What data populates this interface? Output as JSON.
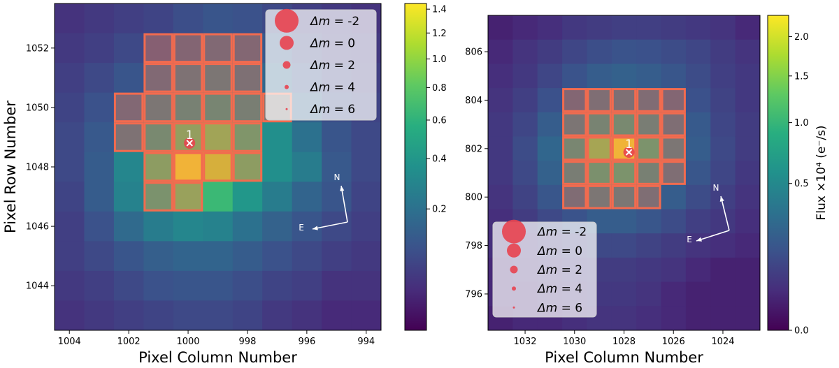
{
  "chart_data": [
    {
      "type": "heatmap",
      "xlabel": "Pixel Column Number",
      "ylabel": "Pixel Row Number",
      "x_range": [
        1004.5,
        993.5
      ],
      "y_range": [
        1042.5,
        1053.5
      ],
      "x_ticks": [
        1004,
        1002,
        1000,
        998,
        996,
        994
      ],
      "y_ticks": [
        1044,
        1046,
        1048,
        1050,
        1052
      ],
      "colorbar": {
        "label": "",
        "ticks": [
          {
            "value": 1.4,
            "label": "1.4"
          },
          {
            "value": 1.2,
            "label": "1.2"
          },
          {
            "value": 1.0,
            "label": "1.0"
          },
          {
            "value": 0.8,
            "label": "0.8"
          },
          {
            "value": 0.6,
            "label": "0.6"
          },
          {
            "value": 0.4,
            "label": "0.4"
          },
          {
            "value": 0.2,
            "label": "0.2"
          }
        ]
      },
      "grid_col_start": 1004,
      "grid_row_start": 1053,
      "pixel_flux": [
        [
          0.03,
          0.04,
          0.05,
          0.06,
          0.08,
          0.1,
          0.09,
          0.07,
          0.05,
          0.04,
          0.03
        ],
        [
          0.04,
          0.05,
          0.07,
          0.1,
          0.13,
          0.16,
          0.14,
          0.11,
          0.07,
          0.05,
          0.04
        ],
        [
          0.05,
          0.07,
          0.1,
          0.16,
          0.22,
          0.25,
          0.21,
          0.16,
          0.1,
          0.06,
          0.05
        ],
        [
          0.06,
          0.09,
          0.15,
          0.25,
          0.35,
          0.4,
          0.33,
          0.24,
          0.14,
          0.08,
          0.06
        ],
        [
          0.07,
          0.11,
          0.22,
          0.45,
          0.75,
          0.85,
          0.6,
          0.35,
          0.2,
          0.1,
          0.07
        ],
        [
          0.07,
          0.12,
          0.3,
          0.7,
          1.4,
          1.2,
          0.7,
          0.35,
          0.25,
          0.11,
          0.07
        ],
        [
          0.06,
          0.12,
          0.28,
          0.55,
          0.8,
          0.65,
          0.4,
          0.25,
          0.15,
          0.1,
          0.06
        ],
        [
          0.05,
          0.09,
          0.17,
          0.25,
          0.3,
          0.28,
          0.2,
          0.14,
          0.1,
          0.07,
          0.05
        ],
        [
          0.05,
          0.07,
          0.1,
          0.13,
          0.15,
          0.15,
          0.12,
          0.09,
          0.07,
          0.05,
          0.04
        ],
        [
          0.04,
          0.05,
          0.07,
          0.09,
          0.1,
          0.1,
          0.08,
          0.06,
          0.05,
          0.03,
          0.03
        ],
        [
          0.03,
          0.04,
          0.05,
          0.06,
          0.07,
          0.07,
          0.06,
          0.04,
          0.03,
          0.02,
          0.02
        ]
      ],
      "aperture_pixels": [
        [
          1001,
          1052
        ],
        [
          1000,
          1052
        ],
        [
          999,
          1052
        ],
        [
          998,
          1052
        ],
        [
          1001,
          1051
        ],
        [
          1000,
          1051
        ],
        [
          999,
          1051
        ],
        [
          998,
          1051
        ],
        [
          1002,
          1050
        ],
        [
          1001,
          1050
        ],
        [
          1000,
          1050
        ],
        [
          999,
          1050
        ],
        [
          998,
          1050
        ],
        [
          997,
          1050
        ],
        [
          1002,
          1049
        ],
        [
          1001,
          1049
        ],
        [
          1000,
          1049
        ],
        [
          999,
          1049
        ],
        [
          998,
          1049
        ],
        [
          1001,
          1048
        ],
        [
          1000,
          1048
        ],
        [
          999,
          1048
        ],
        [
          998,
          1048
        ],
        [
          1001,
          1047
        ],
        [
          1000,
          1047
        ]
      ],
      "stars": [
        {
          "label": "1",
          "column": 999.95,
          "row": 1048.8
        }
      ],
      "legend": {
        "position": "upper-right",
        "entries": [
          {
            "symbol": "Δm",
            "label": " = ",
            "value": "-2"
          },
          {
            "symbol": "Δm",
            "label": " = ",
            "value": "0"
          },
          {
            "symbol": "Δm",
            "label": " = ",
            "value": "2"
          },
          {
            "symbol": "Δm",
            "label": " = ",
            "value": "4"
          },
          {
            "symbol": "Δm",
            "label": " = ",
            "value": "6"
          }
        ]
      },
      "compass": {
        "north": "N",
        "east": "E"
      }
    },
    {
      "type": "heatmap",
      "xlabel": "Pixel Column Number",
      "ylabel": "",
      "x_range": [
        1033.5,
        1022.5
      ],
      "y_range": [
        794.5,
        807.5
      ],
      "x_ticks": [
        1032,
        1030,
        1028,
        1026,
        1024
      ],
      "y_ticks": [
        796,
        798,
        800,
        802,
        804,
        806
      ],
      "colorbar": {
        "label": "Flux ×10⁴ (e⁻/s)",
        "ticks": [
          {
            "value": 2.0,
            "label": "2.0"
          },
          {
            "value": 1.5,
            "label": "1.5"
          },
          {
            "value": 1.0,
            "label": "1.0"
          },
          {
            "value": 0.5,
            "label": "0.5"
          },
          {
            "value": 0.0,
            "label": "0.0"
          }
        ]
      },
      "grid_col_start": 1033,
      "grid_row_start": 807,
      "pixel_flux": [
        [
          0.02,
          0.03,
          0.04,
          0.06,
          0.07,
          0.08,
          0.08,
          0.07,
          0.06,
          0.05,
          0.03
        ],
        [
          0.03,
          0.05,
          0.07,
          0.1,
          0.13,
          0.15,
          0.14,
          0.12,
          0.1,
          0.07,
          0.05
        ],
        [
          0.04,
          0.06,
          0.1,
          0.15,
          0.2,
          0.22,
          0.2,
          0.16,
          0.12,
          0.08,
          0.06
        ],
        [
          0.05,
          0.08,
          0.14,
          0.22,
          0.3,
          0.32,
          0.28,
          0.22,
          0.14,
          0.09,
          0.06
        ],
        [
          0.06,
          0.1,
          0.2,
          0.38,
          0.6,
          0.7,
          0.5,
          0.3,
          0.18,
          0.1,
          0.07
        ],
        [
          0.06,
          0.12,
          0.25,
          0.65,
          1.4,
          2.2,
          0.9,
          0.4,
          0.2,
          0.11,
          0.07
        ],
        [
          0.06,
          0.11,
          0.22,
          0.5,
          0.85,
          0.9,
          0.55,
          0.3,
          0.16,
          0.1,
          0.06
        ],
        [
          0.05,
          0.09,
          0.16,
          0.28,
          0.4,
          0.42,
          0.3,
          0.2,
          0.12,
          0.08,
          0.05
        ],
        [
          0.04,
          0.07,
          0.11,
          0.15,
          0.2,
          0.2,
          0.16,
          0.12,
          0.08,
          0.06,
          0.04
        ],
        [
          0.04,
          0.05,
          0.07,
          0.09,
          0.11,
          0.11,
          0.09,
          0.07,
          0.05,
          0.04,
          0.03
        ],
        [
          0.03,
          0.04,
          0.05,
          0.06,
          0.07,
          0.07,
          0.06,
          0.05,
          0.03,
          0.02,
          0.02
        ],
        [
          0.03,
          0.03,
          0.04,
          0.05,
          0.06,
          0.06,
          0.05,
          0.03,
          0.02,
          0.02,
          0.02
        ],
        [
          0.02,
          0.03,
          0.03,
          0.04,
          0.05,
          0.05,
          0.04,
          0.03,
          0.02,
          0.02,
          0.02
        ]
      ],
      "aperture_pixels": [
        [
          1030,
          804
        ],
        [
          1029,
          804
        ],
        [
          1028,
          804
        ],
        [
          1027,
          804
        ],
        [
          1026,
          804
        ],
        [
          1030,
          803
        ],
        [
          1029,
          803
        ],
        [
          1028,
          803
        ],
        [
          1027,
          803
        ],
        [
          1026,
          803
        ],
        [
          1030,
          802
        ],
        [
          1029,
          802
        ],
        [
          1028,
          802
        ],
        [
          1027,
          802
        ],
        [
          1026,
          802
        ],
        [
          1030,
          801
        ],
        [
          1029,
          801
        ],
        [
          1028,
          801
        ],
        [
          1027,
          801
        ],
        [
          1026,
          801
        ],
        [
          1030,
          800
        ],
        [
          1029,
          800
        ],
        [
          1028,
          800
        ],
        [
          1027,
          800
        ]
      ],
      "stars": [
        {
          "label": "1",
          "column": 1027.8,
          "row": 801.85
        }
      ],
      "legend": {
        "position": "lower-left",
        "entries": [
          {
            "symbol": "Δm",
            "label": " = ",
            "value": "-2"
          },
          {
            "symbol": "Δm",
            "label": " = ",
            "value": "0"
          },
          {
            "symbol": "Δm",
            "label": " = ",
            "value": "2"
          },
          {
            "symbol": "Δm",
            "label": " = ",
            "value": "4"
          },
          {
            "symbol": "Δm",
            "label": " = ",
            "value": "6"
          }
        ]
      },
      "compass": {
        "north": "N",
        "east": "E"
      }
    }
  ]
}
